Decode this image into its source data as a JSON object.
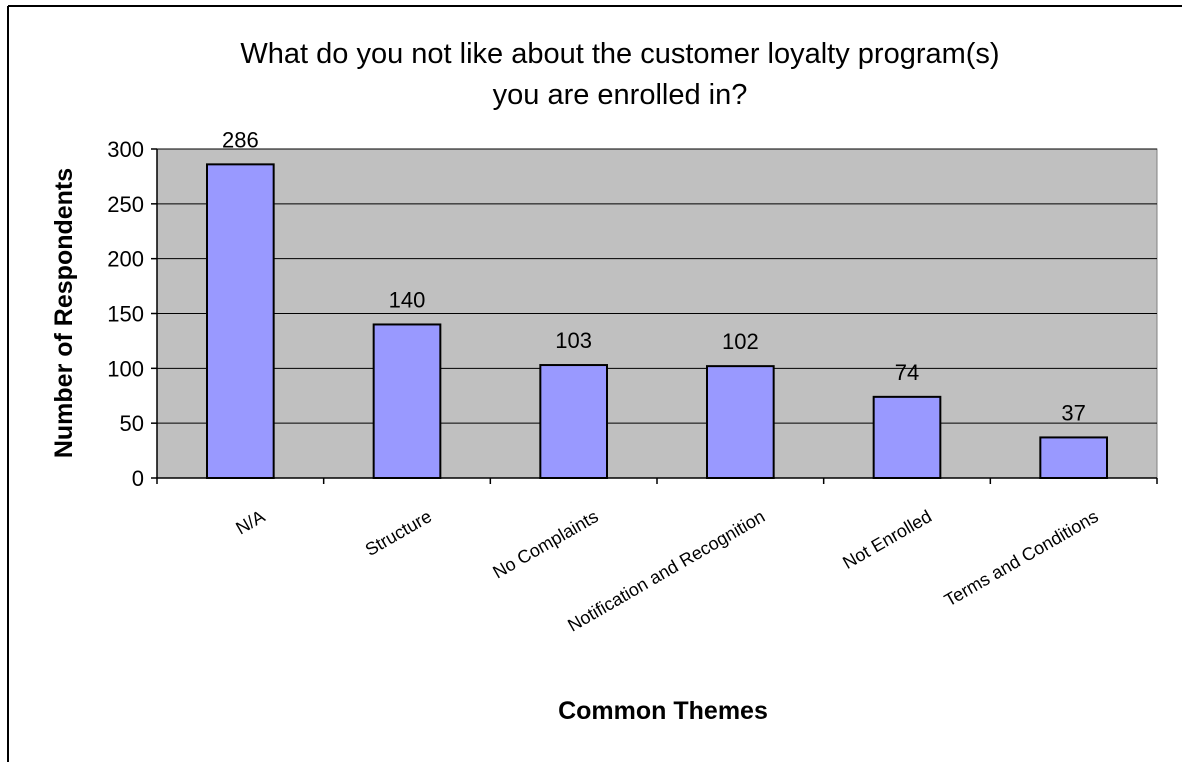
{
  "chart_data": {
    "type": "bar",
    "title": "What do you not like about the customer loyalty program(s) you are enrolled in?",
    "title_lines": [
      "What do you not like about the customer loyalty program(s)",
      "you are enrolled in?"
    ],
    "xlabel": "Common Themes",
    "ylabel": "Number of Respondents",
    "categories": [
      "N/A",
      "Structure",
      "No Complaints",
      "Notification and Recognition",
      "Not Enrolled",
      "Terms and Conditions"
    ],
    "values": [
      286,
      140,
      103,
      102,
      74,
      37
    ],
    "data_labels": [
      "286",
      "140",
      "103",
      "102",
      "74",
      "37"
    ],
    "ylim": [
      0,
      300
    ],
    "yticks": [
      0,
      50,
      100,
      150,
      200,
      250,
      300
    ],
    "grid": true,
    "legend": "none",
    "colors": {
      "bar_fill": "#9999ff",
      "bar_stroke": "#000000",
      "plot_background": "#c0c0c0",
      "gridline": "#000000"
    }
  }
}
